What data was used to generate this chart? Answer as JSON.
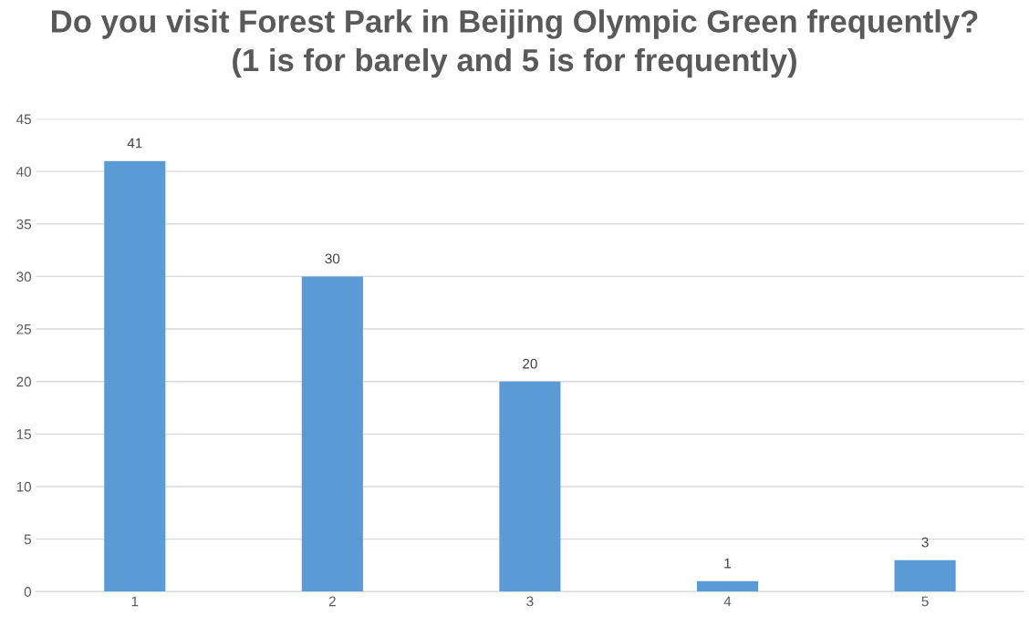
{
  "chart_data": {
    "type": "bar",
    "title": "Do you visit Forest Park in Beijing Olympic Green frequently?\n(1 is for barely and 5 is for frequently)",
    "categories": [
      "1",
      "2",
      "3",
      "4",
      "5"
    ],
    "values": [
      41,
      30,
      20,
      1,
      3
    ],
    "color": "#5b9bd5",
    "ylim": [
      0,
      45
    ],
    "yticks": [
      0,
      5,
      10,
      15,
      20,
      25,
      30,
      35,
      40,
      45
    ],
    "grid": "y",
    "data_labels": true,
    "legend": false
  }
}
